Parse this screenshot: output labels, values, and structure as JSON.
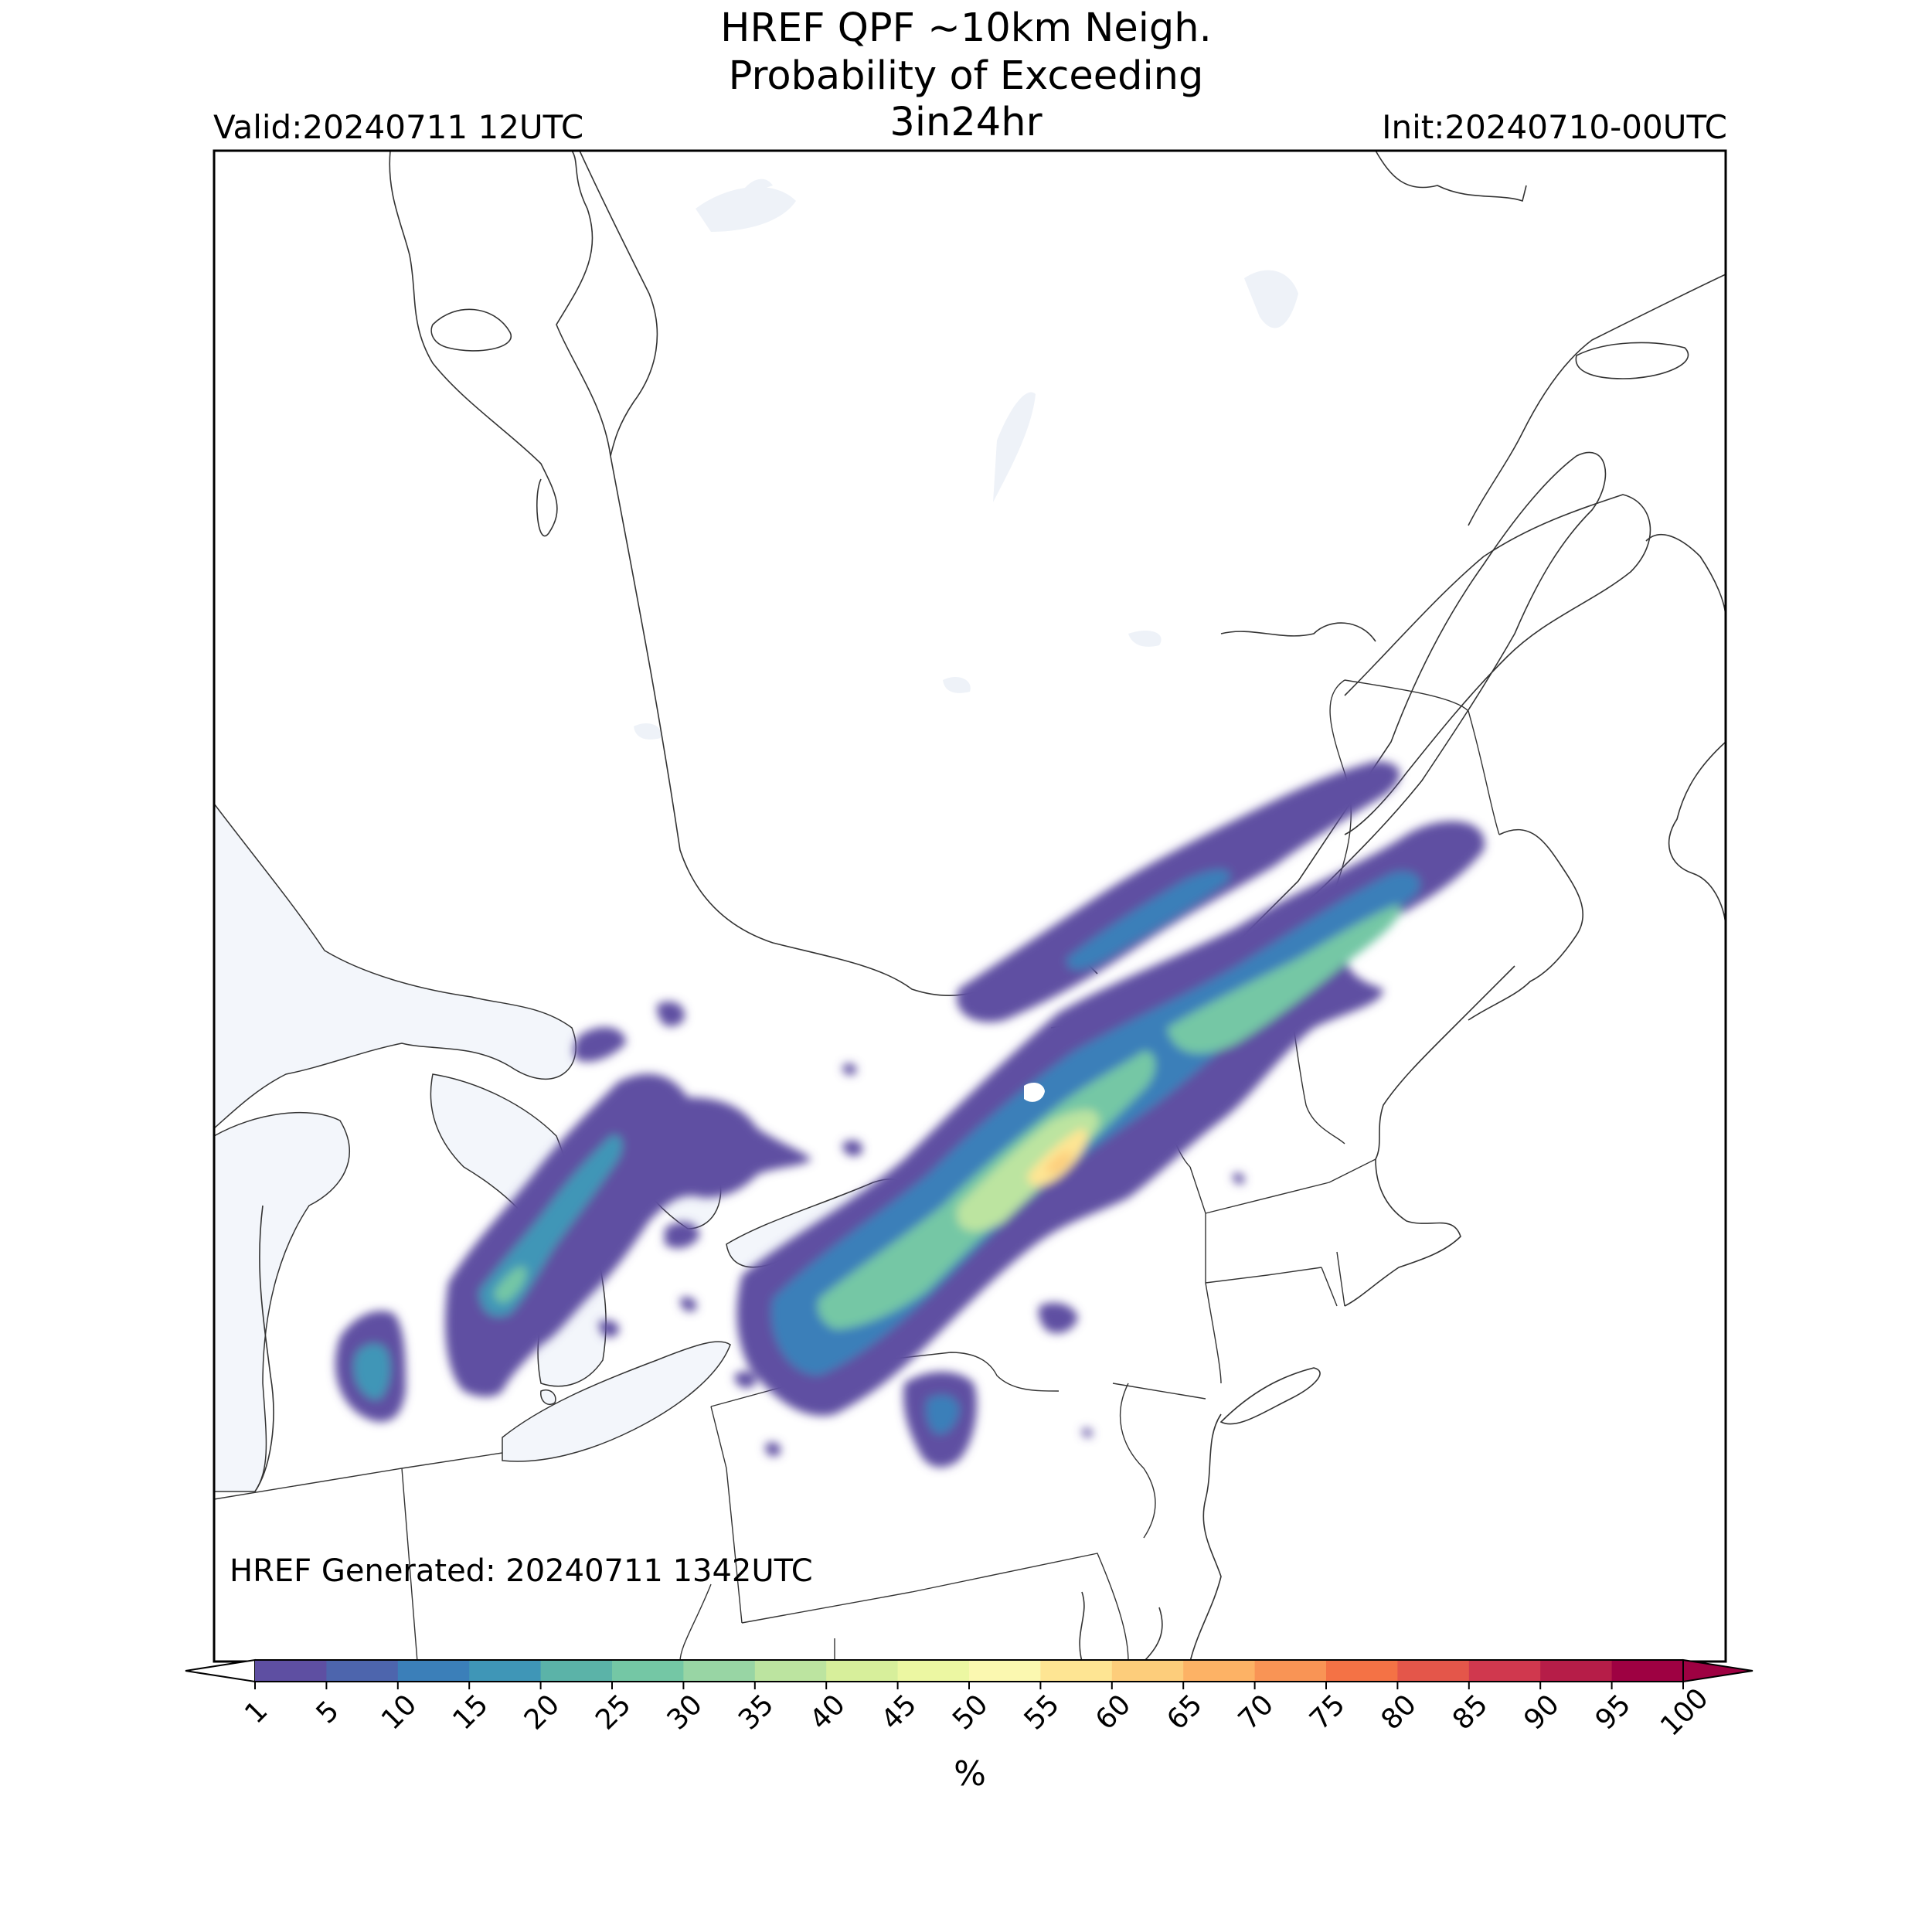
{
  "header": {
    "title_line1": "HREF QPF ~10km Neigh.",
    "title_line2": "Probability of Exceeding",
    "title_line3": "3in24hr",
    "valid": "Valid:20240711 12UTC",
    "init": "Init:20240710-00UTC"
  },
  "footer": {
    "generated": "HREF Generated: 20240711 1342UTC"
  },
  "colorbar": {
    "unit": "%",
    "ticks": [
      "1",
      "5",
      "10",
      "15",
      "20",
      "25",
      "30",
      "35",
      "40",
      "45",
      "50",
      "55",
      "60",
      "65",
      "70",
      "75",
      "80",
      "85",
      "90",
      "95",
      "100"
    ],
    "colors": [
      "#5e4fa2",
      "#4d65ad",
      "#3b7fb9",
      "#3f96b7",
      "#5bb3a8",
      "#74c7a5",
      "#98d5a4",
      "#bce4a0",
      "#d7ef9b",
      "#ecf7a2",
      "#fbf8b0",
      "#fee593",
      "#fdcd7b",
      "#fdb265",
      "#f99455",
      "#f47245",
      "#e4564a",
      "#d0384e",
      "#b61d48",
      "#9e0142"
    ],
    "min_extend_color": "#ffffff",
    "max_extend_color": "#9e0142"
  },
  "map": {
    "land_color": "#ffffff",
    "water_color": "#f3f6fb",
    "boundary_color": "#333333"
  }
}
